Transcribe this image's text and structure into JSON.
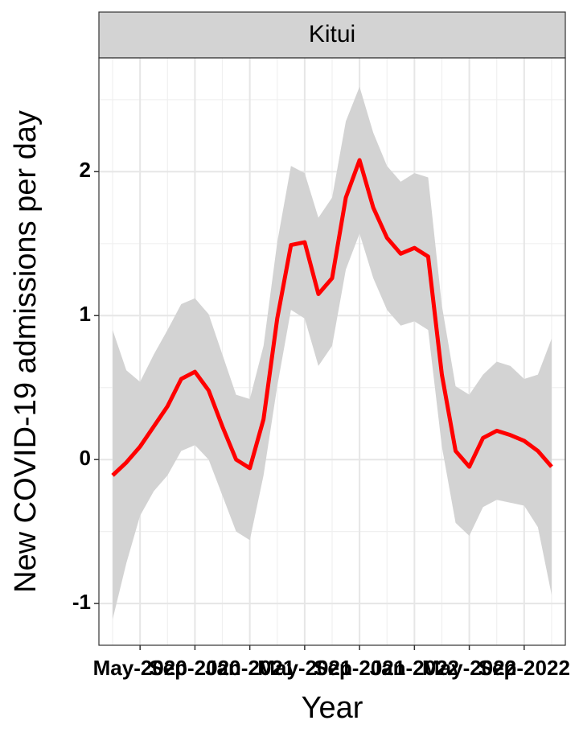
{
  "chart_data": {
    "type": "line",
    "facet": "Kitui",
    "xlabel": "Year",
    "ylabel": "New COVID-19 admissions per day",
    "x": [
      "2020-03",
      "2020-04",
      "2020-05",
      "2020-06",
      "2020-07",
      "2020-08",
      "2020-09",
      "2020-10",
      "2020-11",
      "2020-12",
      "2021-01",
      "2021-02",
      "2021-03",
      "2021-04",
      "2021-05",
      "2021-06",
      "2021-07",
      "2021-08",
      "2021-09",
      "2021-10",
      "2021-11",
      "2021-12",
      "2022-01",
      "2022-02",
      "2022-03",
      "2022-04",
      "2022-05",
      "2022-06",
      "2022-07",
      "2022-08",
      "2022-09",
      "2022-10",
      "2022-11"
    ],
    "values": [
      -0.11,
      -0.02,
      0.09,
      0.23,
      0.37,
      0.56,
      0.61,
      0.48,
      0.23,
      0.0,
      -0.06,
      0.28,
      0.98,
      1.49,
      1.51,
      1.15,
      1.26,
      1.82,
      2.08,
      1.75,
      1.54,
      1.43,
      1.47,
      1.41,
      0.59,
      0.06,
      -0.05,
      0.15,
      0.2,
      0.17,
      0.13,
      0.06,
      -0.05
    ],
    "lower": [
      -1.11,
      -0.72,
      -0.39,
      -0.22,
      -0.11,
      0.06,
      0.1,
      0.0,
      -0.25,
      -0.5,
      -0.56,
      -0.11,
      0.51,
      1.04,
      0.98,
      0.65,
      0.79,
      1.32,
      1.57,
      1.26,
      1.04,
      0.93,
      0.96,
      0.9,
      0.09,
      -0.44,
      -0.53,
      -0.33,
      -0.28,
      -0.3,
      -0.32,
      -0.47,
      -0.94
    ],
    "upper": [
      0.9,
      0.62,
      0.54,
      0.73,
      0.9,
      1.08,
      1.12,
      1.01,
      0.73,
      0.45,
      0.42,
      0.79,
      1.51,
      2.04,
      1.99,
      1.68,
      1.82,
      2.35,
      2.59,
      2.27,
      2.04,
      1.93,
      1.99,
      1.96,
      1.07,
      0.51,
      0.45,
      0.59,
      0.68,
      0.65,
      0.56,
      0.59,
      0.84
    ],
    "color": "#ff0000",
    "ribbon_color": "#d3d3d3",
    "xlim": [
      "2020-02",
      "2022-12"
    ],
    "xticks": [
      {
        "value": "2020-05",
        "label": "May-2020"
      },
      {
        "value": "2020-09",
        "label": "Sep-2020"
      },
      {
        "value": "2021-01",
        "label": "Jan-2021"
      },
      {
        "value": "2021-05",
        "label": "May-2021"
      },
      {
        "value": "2021-09",
        "label": "Sep-2021"
      },
      {
        "value": "2022-01",
        "label": "Jan-2022"
      },
      {
        "value": "2022-05",
        "label": "May-2022"
      },
      {
        "value": "2022-09",
        "label": "Sep-2022"
      }
    ],
    "xminor": [
      "2020-03",
      "2020-07",
      "2020-11",
      "2021-03",
      "2021-07",
      "2021-11",
      "2022-03",
      "2022-07",
      "2022-11"
    ],
    "ylim": [
      -1.29,
      2.79
    ],
    "yticks": [
      -1,
      0,
      1,
      2
    ],
    "yminor": [
      -0.5,
      0.5,
      1.5,
      2.5
    ],
    "grid": true
  }
}
